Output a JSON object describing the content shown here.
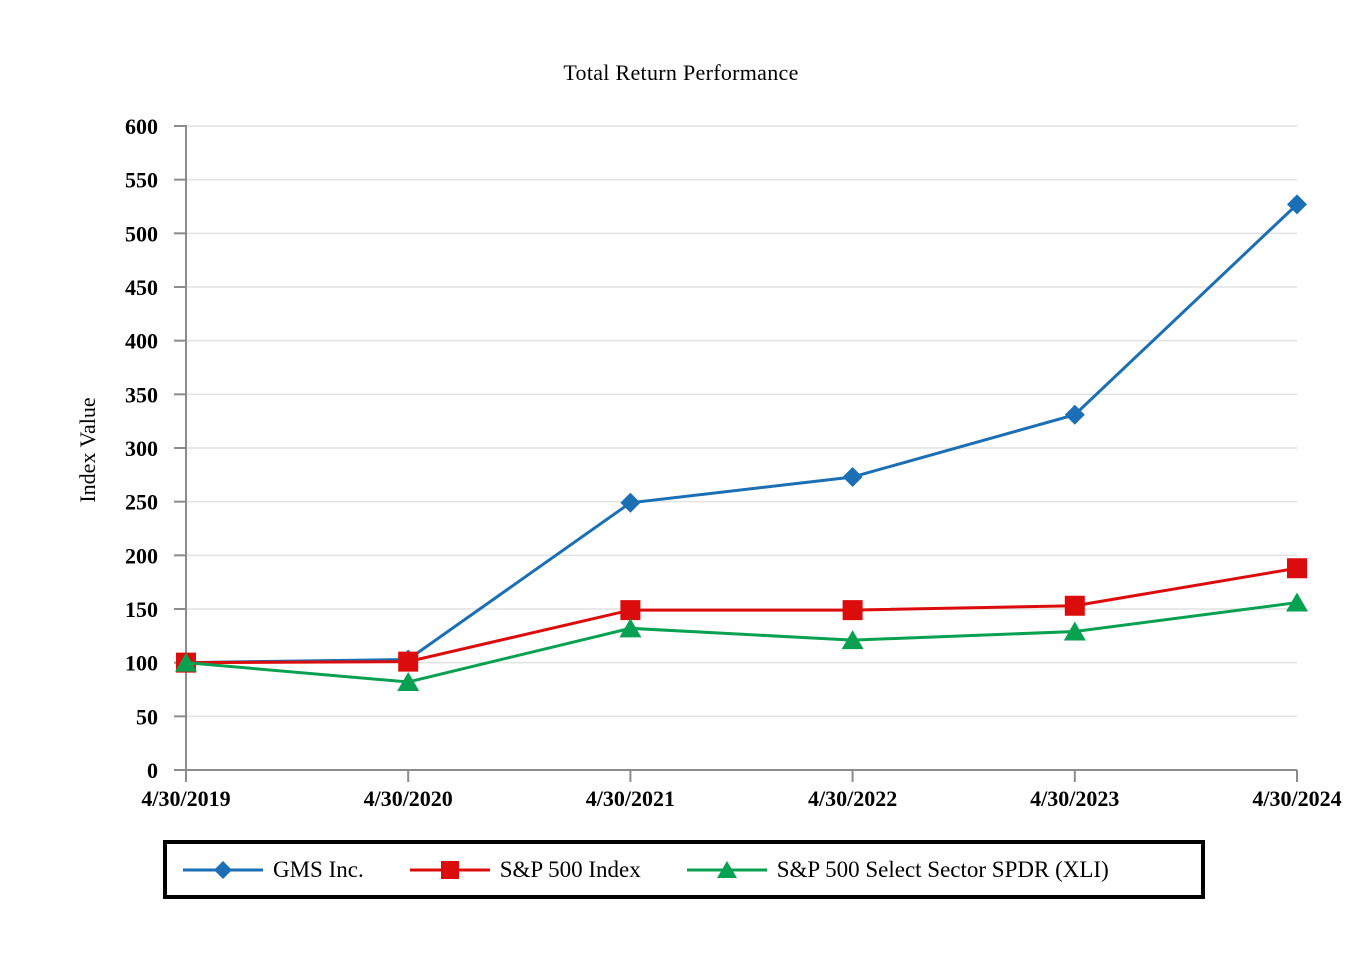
{
  "title": "Total Return Performance",
  "chart_data": {
    "type": "line",
    "title": "Total Return Performance",
    "xlabel": "",
    "ylabel": "Index Value",
    "categories": [
      "4/30/2019",
      "4/30/2020",
      "4/30/2021",
      "4/30/2022",
      "4/30/2023",
      "4/30/2024"
    ],
    "series": [
      {
        "name": "GMS Inc.",
        "marker": "diamond",
        "color": "#1b6fb5",
        "values": [
          100,
          103,
          249,
          273,
          331,
          527
        ]
      },
      {
        "name": "S&P 500 Index",
        "marker": "square",
        "color": "#dd0c0c",
        "values": [
          100,
          101,
          149,
          149,
          153,
          188
        ]
      },
      {
        "name": "S&P 500 Select Sector SPDR (XLI)",
        "marker": "triangle",
        "color": "#08a151",
        "values": [
          100,
          82,
          132,
          121,
          129,
          156
        ]
      }
    ],
    "ylim": [
      0,
      600
    ],
    "ytick_step": 50,
    "yticks": [
      0,
      50,
      100,
      150,
      200,
      250,
      300,
      350,
      400,
      450,
      500,
      550,
      600
    ],
    "grid": "horizontal",
    "legend_position": "bottom"
  },
  "colors": {
    "axis": "#8c8c8c",
    "gridline": "#e2e2e2",
    "text": "#000000",
    "background": "#ffffff",
    "legend_border": "#000000"
  }
}
